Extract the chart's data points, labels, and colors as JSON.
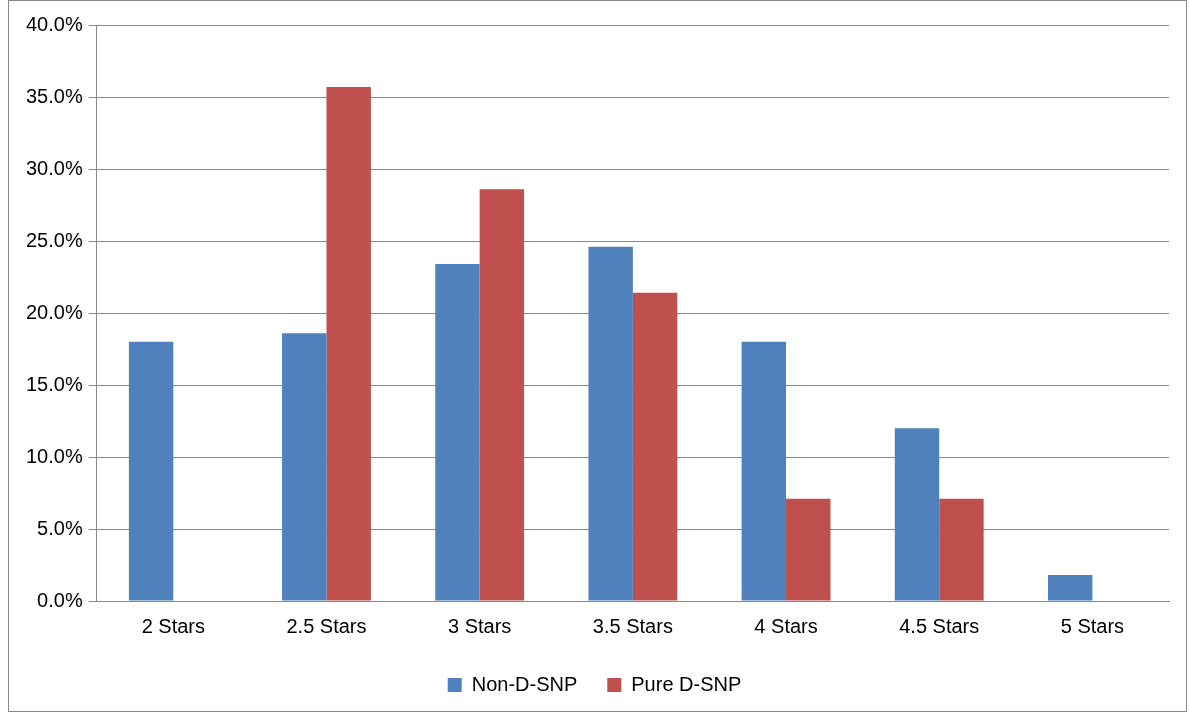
{
  "chart_data": {
    "type": "bar",
    "categories": [
      "2 Stars",
      "2.5 Stars",
      "3 Stars",
      "3.5 Stars",
      "4 Stars",
      "4.5 Stars",
      "5 Stars"
    ],
    "series": [
      {
        "name": "Non-D-SNP",
        "color": "#4f81bd",
        "values": [
          18.0,
          18.6,
          23.4,
          24.6,
          18.0,
          12.0,
          1.8
        ]
      },
      {
        "name": "Pure D-SNP",
        "color": "#c0504d",
        "values": [
          0,
          35.7,
          28.6,
          21.4,
          7.1,
          7.1,
          0
        ]
      }
    ],
    "ylim": [
      0,
      40
    ],
    "yticks": [
      {
        "value": 0,
        "label": "0.0%"
      },
      {
        "value": 5,
        "label": "5.0%"
      },
      {
        "value": 10,
        "label": "10.0%"
      },
      {
        "value": 15,
        "label": "15.0%"
      },
      {
        "value": 20,
        "label": "20.0%"
      },
      {
        "value": 25,
        "label": "25.0%"
      },
      {
        "value": 30,
        "label": "30.0%"
      },
      {
        "value": 35,
        "label": "35.0%"
      },
      {
        "value": 40,
        "label": "40.0%"
      }
    ],
    "grid": "y",
    "legend": "bottom"
  }
}
